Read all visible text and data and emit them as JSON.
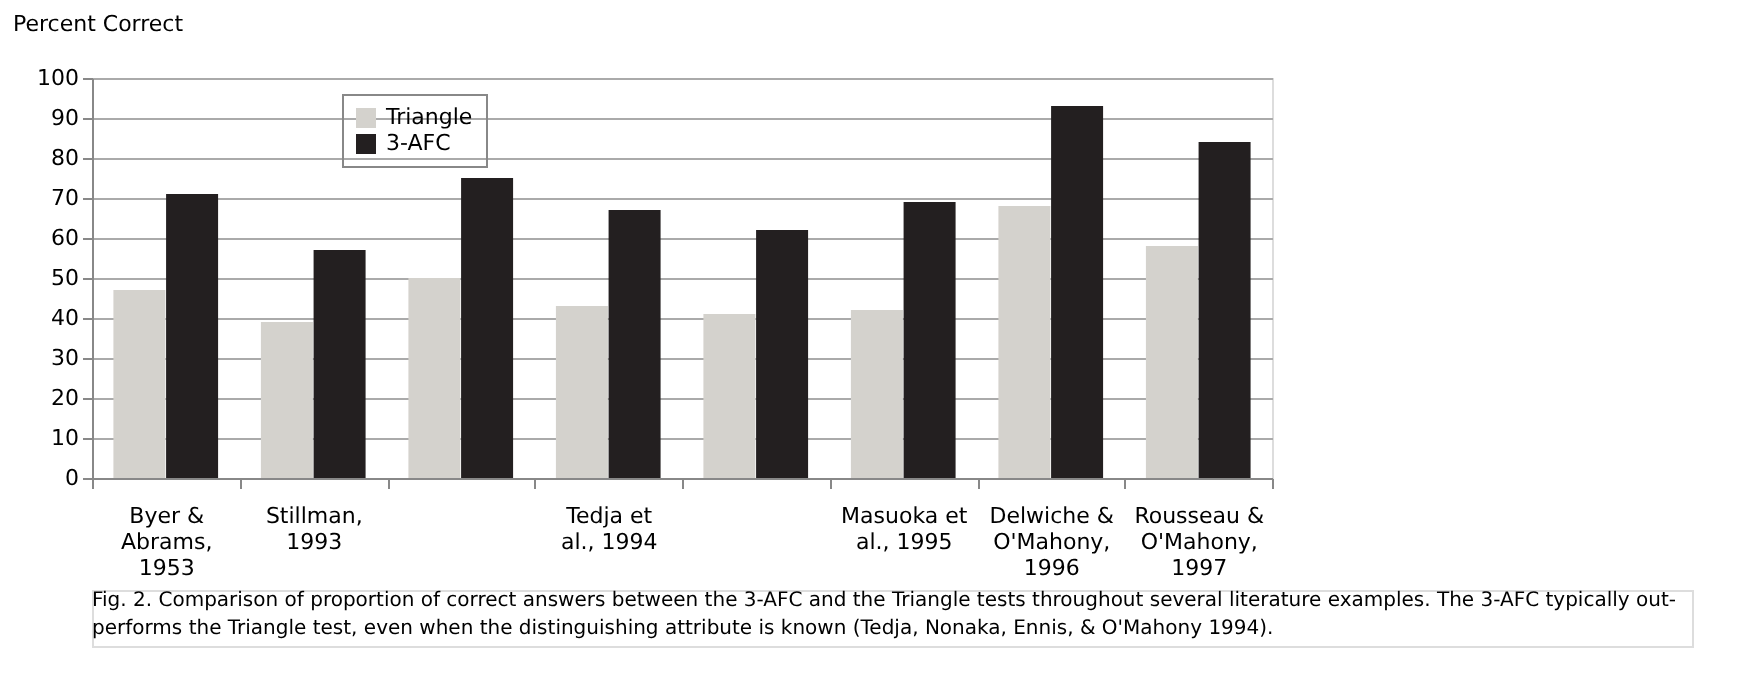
{
  "chart_data": {
    "type": "bar",
    "ylabel": "Percent  Correct",
    "categories": [
      "Byer & Abrams, 1953",
      "Stillman, 1993",
      null,
      "Tedja et al., 1994",
      null,
      "Masuoka et al., 1995",
      "Delwiche & O'Mahony, 1996",
      "Rousseau & O'Mahony, 1997"
    ],
    "series": [
      {
        "name": "Triangle",
        "color": "#d4d2cd",
        "values": [
          47,
          39,
          50,
          43,
          41,
          42,
          68,
          58
        ]
      },
      {
        "name": "3-AFC",
        "color": "#231f20",
        "values": [
          71,
          57,
          75,
          67,
          62,
          69,
          93,
          84
        ]
      }
    ],
    "ylim": [
      0,
      100
    ],
    "yticks": [
      0,
      10,
      20,
      30,
      40,
      50,
      60,
      70,
      80,
      90,
      100
    ],
    "grid": "y",
    "legend": "top left",
    "annotations": [
      "Fig. 2.  Comparison of proportion of correct answers between the 3-AFC and the Triangle tests throughout several literature examples. The 3-AFC typically out-performs the Triangle test, even when the distinguishing attribute is known (Tedja, Nonaka, Ennis, & O'Mahony 1994)."
    ]
  }
}
